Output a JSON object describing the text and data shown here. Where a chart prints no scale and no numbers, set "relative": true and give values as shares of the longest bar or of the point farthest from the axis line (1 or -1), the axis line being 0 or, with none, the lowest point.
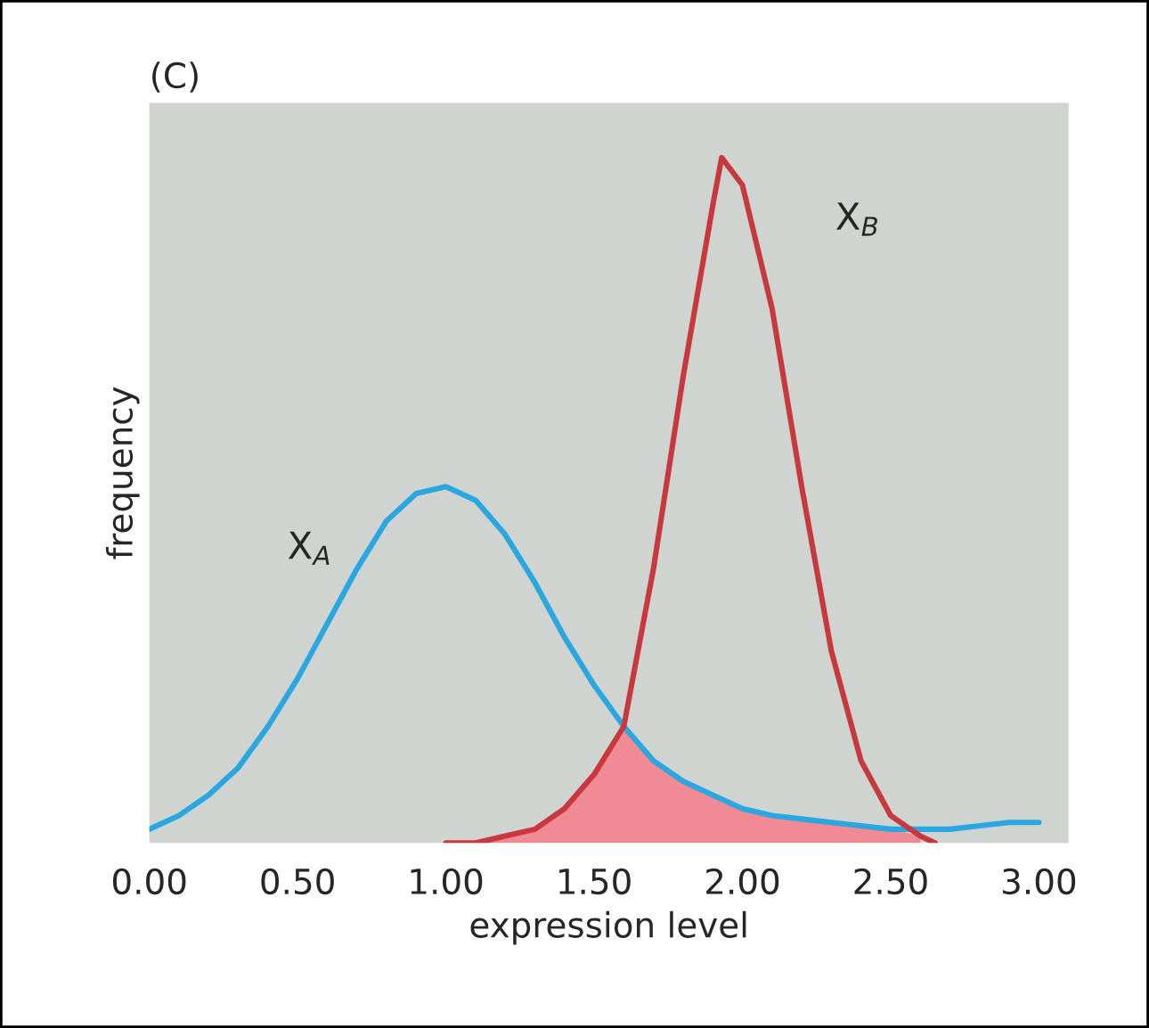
{
  "chart_data": {
    "type": "line",
    "title": "(C)",
    "xlabel": "expression level",
    "ylabel": "frequency",
    "relative": true,
    "xlim": [
      0,
      3.1
    ],
    "xticks": [
      {
        "value": 0,
        "label": "0.00"
      },
      {
        "value": 0.5,
        "label": "0.50"
      },
      {
        "value": 1,
        "label": "1.00"
      },
      {
        "value": 1.5,
        "label": "1.50"
      },
      {
        "value": 2,
        "label": "2.00"
      },
      {
        "value": 2.5,
        "label": "2.50"
      },
      {
        "value": 3,
        "label": "3.00"
      }
    ],
    "tick_labels": "x",
    "grid": false,
    "legend": false,
    "series": [
      {
        "name": "X$_{A}$",
        "color": "#2aa6e0",
        "x": [
          0,
          0.1,
          0.2,
          0.3,
          0.4,
          0.5,
          0.6,
          0.7,
          0.8,
          0.9,
          1.0,
          1.1,
          1.2,
          1.3,
          1.4,
          1.5,
          1.6,
          1.7,
          1.8,
          1.9,
          2.0,
          2.1,
          2.2,
          2.3,
          2.4,
          2.5,
          2.6,
          2.7,
          2.8,
          2.9,
          3.0
        ],
        "values": [
          0.02,
          0.04,
          0.07,
          0.11,
          0.17,
          0.24,
          0.32,
          0.4,
          0.47,
          0.51,
          0.52,
          0.5,
          0.45,
          0.38,
          0.3,
          0.23,
          0.17,
          0.12,
          0.09,
          0.07,
          0.05,
          0.04,
          0.035,
          0.03,
          0.025,
          0.02,
          0.02,
          0.02,
          0.025,
          0.03,
          0.03
        ]
      },
      {
        "name": "X$_{B}$",
        "color": "#c8383f",
        "x": [
          1.0,
          1.1,
          1.2,
          1.3,
          1.4,
          1.5,
          1.6,
          1.7,
          1.8,
          1.9,
          1.93,
          2.0,
          2.1,
          2.2,
          2.3,
          2.4,
          2.5,
          2.6,
          2.65
        ],
        "values": [
          0,
          0,
          0.01,
          0.02,
          0.05,
          0.1,
          0.17,
          0.4,
          0.68,
          0.93,
          1.0,
          0.96,
          0.78,
          0.52,
          0.28,
          0.12,
          0.04,
          0.01,
          0
        ]
      },
      {
        "type": "area",
        "color": "#f08a94",
        "x": [
          1.0,
          1.1,
          1.2,
          1.3,
          1.4,
          1.5,
          1.6,
          1.7,
          1.8,
          1.9,
          2.0,
          2.1,
          2.2,
          2.3,
          2.4,
          2.5,
          2.6
        ],
        "values": [
          0,
          0,
          0.01,
          0.02,
          0.05,
          0.1,
          0.17,
          0.12,
          0.09,
          0.07,
          0.05,
          0.04,
          0.035,
          0.03,
          0.025,
          0.02,
          0.01
        ]
      }
    ]
  }
}
